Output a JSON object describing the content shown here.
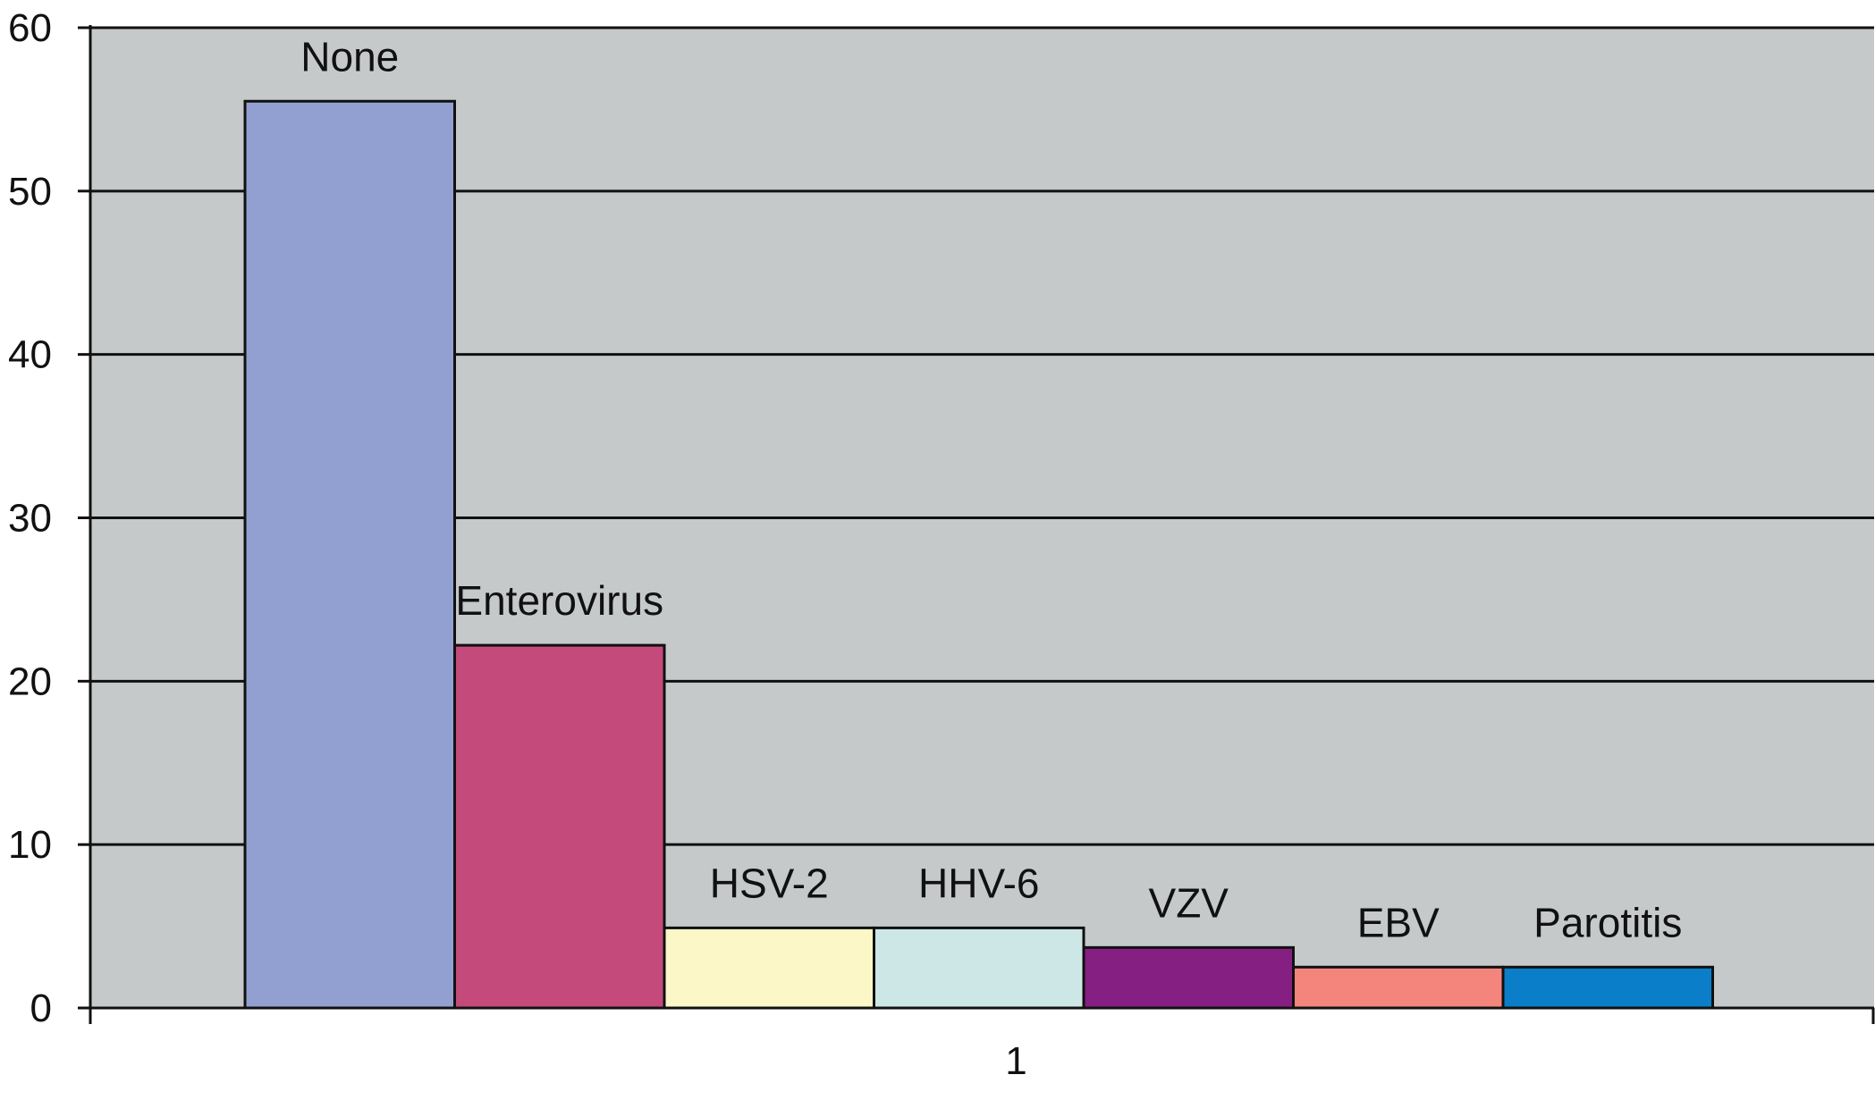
{
  "chart_data": {
    "type": "bar",
    "categories": [
      "1"
    ],
    "series": [
      {
        "name": "None",
        "values": [
          55.5
        ],
        "color": "#929fd1"
      },
      {
        "name": "Enterovirus",
        "values": [
          22.2
        ],
        "color": "#c54a7c"
      },
      {
        "name": "HSV-2",
        "values": [
          4.9
        ],
        "color": "#fbf7c6"
      },
      {
        "name": "HHV-6",
        "values": [
          4.9
        ],
        "color": "#cde6e6"
      },
      {
        "name": "VZV",
        "values": [
          3.7
        ],
        "color": "#861f82"
      },
      {
        "name": "EBV",
        "values": [
          2.5
        ],
        "color": "#f3857c"
      },
      {
        "name": "Parotitis",
        "values": [
          2.5
        ],
        "color": "#0a7ec8"
      }
    ],
    "yticks": [
      "0",
      "10",
      "20",
      "30",
      "40",
      "50",
      "60"
    ],
    "ylim": [
      0,
      60
    ],
    "grid": true,
    "legend": "none",
    "plot_background": "#c6c9ca",
    "title": "",
    "xlabel": "",
    "ylabel": ""
  }
}
